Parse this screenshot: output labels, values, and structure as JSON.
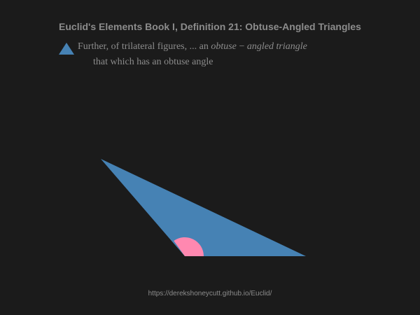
{
  "title": "Euclid's Elements Book I, Definition 21: Obtuse-Angled Triangles",
  "definition": {
    "prefix": "Further, of trilateral figures, ... an ",
    "term": "obtuse − angled triangle",
    "continuation": "that which has an obtuse angle",
    "icon": "triangle-icon"
  },
  "colors": {
    "background": "#1b1b1b",
    "text": "#8c8c8c",
    "triangle_fill": "#4682b4",
    "angle_marker": "#ff88b0"
  },
  "footer": {
    "url": "https://derekshoneycutt.github.io/Euclid/"
  }
}
